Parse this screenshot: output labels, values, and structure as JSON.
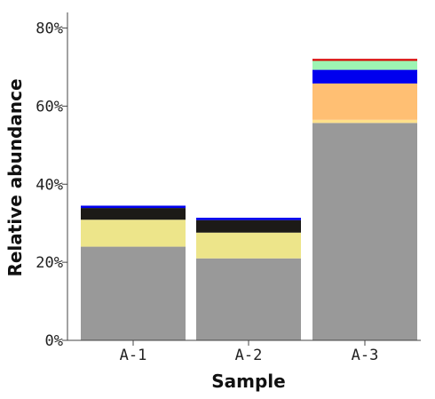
{
  "chart_data": {
    "type": "bar",
    "stacked": true,
    "xlabel": "Sample",
    "ylabel": "Relative abundance",
    "categories": [
      "A-1",
      "A-2",
      "A-3"
    ],
    "ylim": [
      0,
      84
    ],
    "yticks": [
      0,
      20,
      40,
      60,
      80
    ],
    "ytick_labels": [
      "0%",
      "20%",
      "40%",
      "60%",
      "80%"
    ],
    "grid": false,
    "legend": "none",
    "series": [
      {
        "color": "#999999",
        "values": [
          24.0,
          21.0,
          55.7
        ]
      },
      {
        "color": "#ffe08a",
        "values": [
          0.0,
          0.0,
          0.8
        ]
      },
      {
        "color": "#ede58a",
        "values": [
          6.9,
          6.6,
          0.0
        ]
      },
      {
        "color": "#ffbf73",
        "values": [
          0.0,
          0.0,
          9.3
        ]
      },
      {
        "color": "#1c1a17",
        "values": [
          3.0,
          3.2,
          0.0
        ]
      },
      {
        "color": "#0000ee",
        "values": [
          0.6,
          0.6,
          3.5
        ]
      },
      {
        "color": "#9df5b3",
        "values": [
          0.0,
          0.0,
          2.3
        ]
      },
      {
        "color": "#d80000",
        "values": [
          0.0,
          0.0,
          0.5
        ]
      }
    ]
  }
}
